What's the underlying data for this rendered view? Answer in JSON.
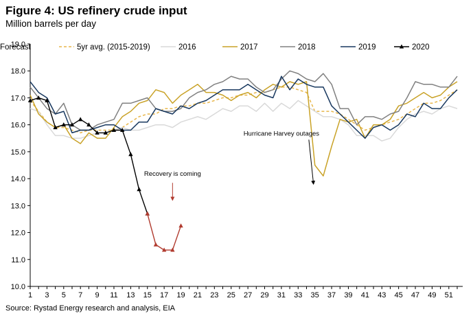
{
  "header": {
    "title": "Figure 4: US refinery crude input",
    "subtitle": "Million barrels per day"
  },
  "footer": {
    "source": "Source: Rystad Energy research and analysis, EIA"
  },
  "chart_data": {
    "type": "line",
    "title": "Figure 4: US refinery crude input",
    "subtitle": "Million barrels per day",
    "xlabel": "",
    "ylabel": "",
    "xlim": [
      1,
      52
    ],
    "ylim": [
      10,
      19
    ],
    "y_ticks": [
      "19.0",
      "18.0",
      "17.0",
      "16.0",
      "15.0",
      "14.0",
      "13.0",
      "12.0",
      "11.0",
      "10.0"
    ],
    "x_ticks": [
      "1",
      "3",
      "5",
      "7",
      "9",
      "11",
      "13",
      "15",
      "17",
      "19",
      "21",
      "23",
      "25",
      "27",
      "29",
      "31",
      "33",
      "35",
      "37",
      "39",
      "41",
      "43",
      "45",
      "47",
      "49",
      "51"
    ],
    "grid": false,
    "legend_position": "top",
    "series": [
      {
        "name": "5yr avg. (2015-2019)",
        "color": "#e8b64a",
        "style": "dashed",
        "values": [
          16.9,
          16.5,
          16.1,
          15.9,
          15.9,
          15.8,
          15.7,
          15.8,
          15.8,
          15.8,
          15.8,
          15.9,
          16.1,
          16.3,
          16.4,
          16.4,
          16.6,
          16.6,
          16.7,
          16.7,
          16.8,
          16.8,
          16.9,
          17.0,
          17.0,
          17.1,
          17.1,
          17.2,
          17.2,
          17.3,
          17.4,
          17.4,
          17.3,
          17.2,
          16.5,
          16.5,
          16.5,
          16.4,
          16.2,
          16.0,
          15.8,
          15.9,
          16.0,
          16.1,
          16.2,
          16.4,
          16.6,
          16.8,
          16.8,
          16.9,
          17.1,
          17.3
        ]
      },
      {
        "name": "2016",
        "color": "#d9d9d9",
        "style": "solid",
        "values": [
          16.6,
          16.5,
          16.0,
          15.6,
          15.6,
          15.5,
          15.5,
          15.6,
          15.7,
          15.7,
          15.8,
          15.9,
          15.8,
          15.8,
          15.9,
          16.0,
          16.0,
          15.9,
          16.1,
          16.2,
          16.3,
          16.2,
          16.4,
          16.6,
          16.5,
          16.7,
          16.7,
          16.5,
          16.8,
          16.5,
          16.8,
          16.6,
          16.9,
          16.7,
          16.5,
          16.3,
          16.3,
          16.2,
          16.0,
          15.6,
          15.6,
          15.6,
          15.4,
          15.5,
          15.9,
          16.2,
          16.4,
          16.5,
          16.4,
          16.6,
          16.7,
          16.6
        ]
      },
      {
        "name": "2017",
        "color": "#c9a227",
        "style": "solid",
        "values": [
          17.1,
          16.4,
          16.1,
          15.9,
          16.0,
          15.5,
          15.3,
          15.7,
          15.5,
          15.5,
          15.9,
          16.3,
          16.5,
          16.8,
          16.9,
          17.3,
          17.2,
          16.8,
          17.1,
          17.3,
          17.5,
          17.2,
          17.2,
          17.1,
          16.9,
          17.1,
          17.2,
          17.0,
          17.3,
          17.5,
          17.4,
          17.6,
          17.5,
          17.6,
          14.5,
          14.1,
          15.2,
          16.2,
          16.1,
          16.2,
          15.5,
          16.0,
          16.0,
          16.2,
          16.7,
          16.8,
          17.0,
          17.2,
          17.0,
          17.1,
          17.4,
          17.6
        ]
      },
      {
        "name": "2018",
        "color": "#808080",
        "style": "solid",
        "values": [
          17.4,
          17.0,
          16.6,
          16.4,
          16.8,
          16.0,
          15.8,
          15.8,
          16.0,
          16.1,
          16.2,
          16.8,
          16.8,
          16.9,
          17.0,
          16.6,
          16.5,
          16.5,
          16.6,
          17.0,
          17.2,
          17.3,
          17.5,
          17.6,
          17.8,
          17.7,
          17.7,
          17.4,
          17.2,
          17.3,
          17.7,
          18.0,
          17.9,
          17.7,
          17.6,
          17.9,
          17.5,
          16.6,
          16.6,
          16.0,
          16.3,
          16.3,
          16.2,
          16.4,
          16.5,
          17.0,
          17.6,
          17.5,
          17.5,
          17.4,
          17.4,
          17.8
        ]
      },
      {
        "name": "2019",
        "color": "#17375e",
        "style": "solid",
        "values": [
          17.6,
          17.2,
          17.0,
          16.4,
          16.5,
          15.7,
          15.8,
          15.8,
          15.9,
          16.0,
          16.0,
          15.8,
          15.8,
          16.1,
          16.1,
          16.6,
          16.5,
          16.4,
          16.7,
          16.6,
          16.8,
          16.9,
          17.1,
          17.3,
          17.3,
          17.3,
          17.5,
          17.3,
          17.1,
          17.0,
          17.8,
          17.3,
          17.7,
          17.5,
          17.4,
          17.4,
          16.7,
          16.4,
          16.1,
          15.8,
          15.5,
          15.9,
          16.0,
          15.8,
          16.0,
          16.4,
          16.3,
          16.8,
          16.6,
          16.6,
          17.0,
          17.3
        ]
      },
      {
        "name": "2020",
        "color": "#000000",
        "style": "solid",
        "marker": "triangle",
        "values": [
          16.9,
          17.0,
          16.9,
          15.9,
          16.0,
          16.0,
          16.2,
          16.0,
          15.7,
          15.7,
          15.8,
          15.8,
          14.9,
          13.6,
          12.7
        ]
      },
      {
        "name": "Forecast",
        "color": "#b03a2e",
        "style": "solid",
        "marker": "triangle",
        "x_start": 15,
        "values": [
          12.7,
          11.55,
          11.35,
          11.35,
          12.25
        ]
      }
    ],
    "annotations": [
      {
        "text": "Recovery is coming",
        "x": 18,
        "y": 14.1,
        "arrow_to": [
          18,
          13.2
        ]
      },
      {
        "text": "Hurricane Harvey outages",
        "x": 31,
        "y": 15.6,
        "arrow_to": [
          35,
          14.0
        ]
      }
    ]
  }
}
